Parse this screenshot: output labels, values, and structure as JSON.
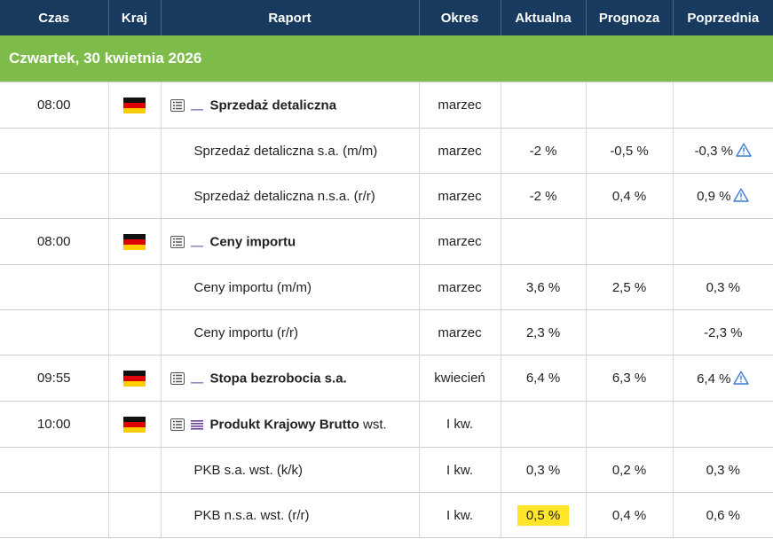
{
  "columns": {
    "time": "Czas",
    "country": "Kraj",
    "report": "Raport",
    "period": "Okres",
    "actual": "Aktualna",
    "forecast": "Prognoza",
    "previous": "Poprzednia"
  },
  "date_header": "Czwartek, 30 kwietnia 2026",
  "colors": {
    "header_bg": "#183a5e",
    "date_bg": "#7dbb4a",
    "highlight": "#ffe629",
    "importance_low": "#8a8fc2",
    "importance_high": "#6a3fa0",
    "warning": "#3a7bd5"
  },
  "rows": [
    {
      "type": "main",
      "time": "08:00",
      "flag": "germany-flag",
      "importance": "low",
      "title": "Sprzedaż detaliczna",
      "suffix": "",
      "period": "marzec",
      "actual": "",
      "forecast": "",
      "previous": ""
    },
    {
      "type": "sub",
      "label": "Sprzedaż detaliczna s.a. (m/m)",
      "period": "marzec",
      "actual": "-2 %",
      "forecast": "-0,5 %",
      "previous": "-0,3 %",
      "previous_revised": true
    },
    {
      "type": "sub",
      "label": "Sprzedaż detaliczna n.s.a. (r/r)",
      "period": "marzec",
      "actual": "-2 %",
      "forecast": "0,4 %",
      "previous": "0,9 %",
      "previous_revised": true
    },
    {
      "type": "main",
      "time": "08:00",
      "flag": "germany-flag",
      "importance": "low",
      "title": "Ceny importu",
      "suffix": "",
      "period": "marzec",
      "actual": "",
      "forecast": "",
      "previous": ""
    },
    {
      "type": "sub",
      "label": "Ceny importu (m/m)",
      "period": "marzec",
      "actual": "3,6 %",
      "forecast": "2,5 %",
      "previous": "0,3 %",
      "previous_revised": false
    },
    {
      "type": "sub",
      "label": "Ceny importu (r/r)",
      "period": "marzec",
      "actual": "2,3 %",
      "forecast": "",
      "previous": "-2,3 %",
      "previous_revised": false
    },
    {
      "type": "main",
      "time": "09:55",
      "flag": "germany-flag",
      "importance": "low",
      "title": "Stopa bezrobocia s.a.",
      "suffix": "",
      "period": "kwiecień",
      "actual": "6,4 %",
      "forecast": "6,3 %",
      "previous": "6,4 %",
      "previous_revised": true
    },
    {
      "type": "main",
      "time": "10:00",
      "flag": "germany-flag",
      "importance": "high",
      "title": "Produkt Krajowy Brutto",
      "suffix": " wst.",
      "period": "I kw.",
      "actual": "",
      "forecast": "",
      "previous": ""
    },
    {
      "type": "sub",
      "label": "PKB s.a. wst. (k/k)",
      "period": "I kw.",
      "actual": "0,3 %",
      "forecast": "0,2 %",
      "previous": "0,3 %",
      "previous_revised": false
    },
    {
      "type": "sub",
      "label": "PKB n.s.a. wst. (r/r)",
      "period": "I kw.",
      "actual": "0,5 %",
      "actual_highlight": true,
      "forecast": "0,4 %",
      "previous": "0,6 %",
      "previous_revised": false
    }
  ]
}
